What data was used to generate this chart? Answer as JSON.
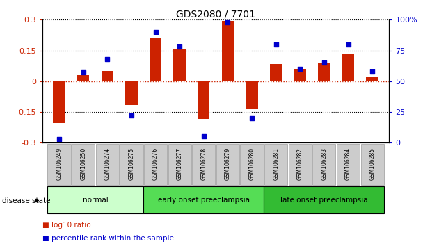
{
  "title": "GDS2080 / 7701",
  "samples": [
    "GSM106249",
    "GSM106250",
    "GSM106274",
    "GSM106275",
    "GSM106276",
    "GSM106277",
    "GSM106278",
    "GSM106279",
    "GSM106280",
    "GSM106281",
    "GSM106282",
    "GSM106283",
    "GSM106284",
    "GSM106285"
  ],
  "log10_ratio": [
    -0.205,
    0.03,
    0.05,
    -0.115,
    0.21,
    0.155,
    -0.185,
    0.295,
    -0.135,
    0.085,
    0.06,
    0.09,
    0.135,
    0.02
  ],
  "percentile_rank": [
    3,
    57,
    68,
    22,
    90,
    78,
    5,
    98,
    20,
    80,
    60,
    65,
    80,
    58
  ],
  "bar_color": "#cc2200",
  "dot_color": "#0000cc",
  "ylim_left": [
    -0.3,
    0.3
  ],
  "ylim_right": [
    0,
    100
  ],
  "yticks_left": [
    -0.3,
    -0.15,
    0,
    0.15,
    0.3
  ],
  "yticks_right": [
    0,
    25,
    50,
    75,
    100
  ],
  "ytick_labels_left": [
    "-0.3",
    "-0.15",
    "0",
    "0.15",
    "0.3"
  ],
  "ytick_labels_right": [
    "0",
    "25",
    "50",
    "75",
    "100%"
  ],
  "groups": [
    {
      "label": "normal",
      "start": 0,
      "end": 3,
      "color": "#ccffcc"
    },
    {
      "label": "early onset preeclampsia",
      "start": 4,
      "end": 8,
      "color": "#55dd55"
    },
    {
      "label": "late onset preeclampsia",
      "start": 9,
      "end": 13,
      "color": "#33bb33"
    }
  ],
  "disease_state_label": "disease state",
  "legend_bar_label": "log10 ratio",
  "legend_dot_label": "percentile rank within the sample",
  "bar_color_legend": "#cc2200",
  "dot_color_legend": "#0000cc",
  "bg_color": "#ffffff",
  "tick_bg_color": "#cccccc",
  "tick_edge_color": "#999999"
}
